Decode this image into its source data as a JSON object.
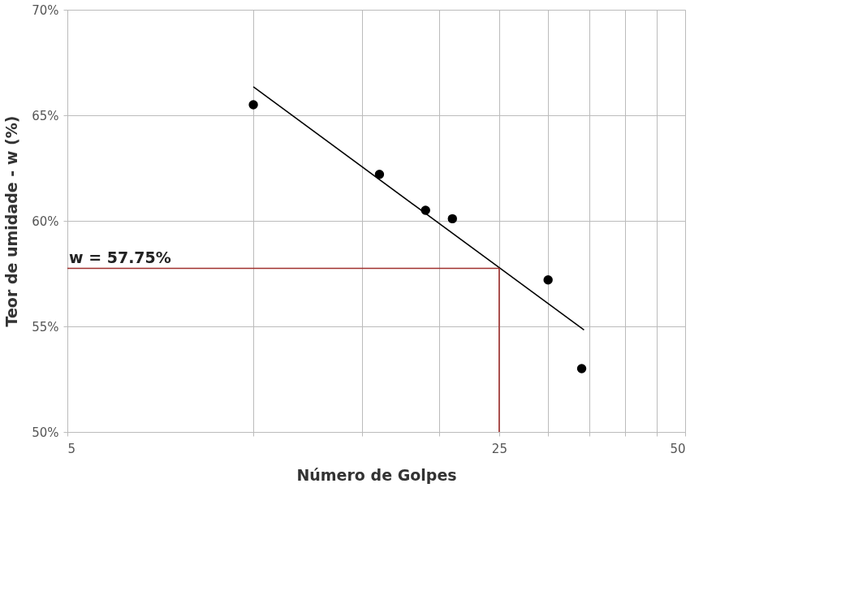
{
  "chart_data": {
    "type": "scatter",
    "xlabel": "Número de Golpes",
    "ylabel": "Teor de umidade - w (%)",
    "log": "x",
    "grid": true,
    "xlim": [
      5,
      50
    ],
    "xticks": [
      5,
      {
        "value": 10,
        "label": null
      },
      {
        "value": 15,
        "label": null
      },
      {
        "value": 20,
        "label": null
      },
      25,
      {
        "value": 30,
        "label": null
      },
      {
        "value": 35,
        "label": null
      },
      {
        "value": 40,
        "label": null
      },
      {
        "value": 45,
        "label": null
      },
      50
    ],
    "ylim": [
      50,
      70
    ],
    "yticks": [
      {
        "value": 50,
        "label": "50%"
      },
      {
        "value": 55,
        "label": "55%"
      },
      {
        "value": 60,
        "label": "60%"
      },
      {
        "value": 65,
        "label": "65%"
      },
      {
        "value": 70,
        "label": "70%"
      }
    ],
    "series": [
      {
        "marker": "circle",
        "color": "#000000",
        "x": [
          10,
          16,
          19,
          21,
          30,
          34
        ],
        "values": [
          65.5,
          62.2,
          60.5,
          60.1,
          57.2,
          53.0
        ]
      },
      {
        "type": "line",
        "line_style": "solid",
        "color": "#000000",
        "x": [
          10,
          34.3
        ],
        "values": [
          66.35,
          54.83
        ]
      },
      {
        "type": "line",
        "line_style": "solid",
        "color": "#a0302d",
        "x": [
          5,
          25,
          25
        ],
        "values": [
          57.75,
          57.75,
          50
        ]
      }
    ],
    "annotations": [
      {
        "text": "w = 57.75%",
        "x": 5,
        "y": 57.75
      }
    ]
  }
}
